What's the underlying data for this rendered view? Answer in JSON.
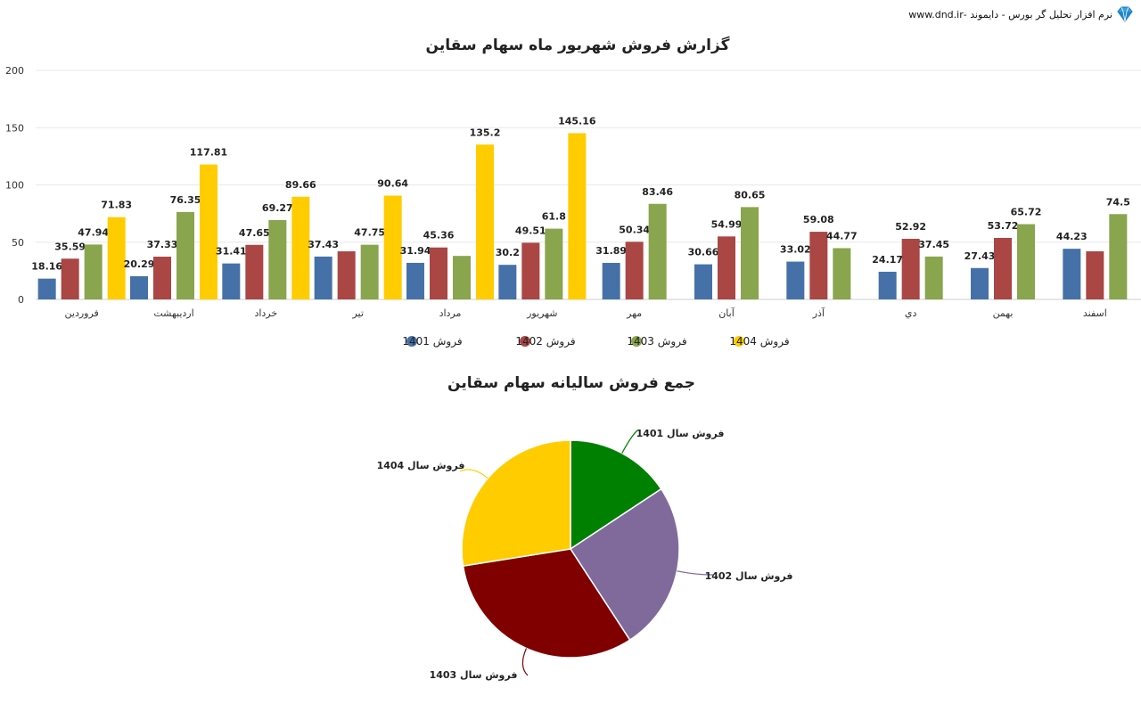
{
  "header": {
    "brand_text": "نرم افزار تحلیل گر بورس - دایموند -www.dnd.ir",
    "logo_icon": "diamond-icon"
  },
  "chart_data": [
    {
      "type": "bar",
      "title": "گزارش فروش شهریور ماه سهام سقاین",
      "categories": [
        "فروردین",
        "اردیبهشت",
        "خرداد",
        "تیر",
        "مرداد",
        "شهریور",
        "مهر",
        "آبان",
        "آذر",
        "دي",
        "بهمن",
        "اسفند"
      ],
      "series": [
        {
          "name": "فروش 1401",
          "color": "#4571a8",
          "values": [
            18.16,
            20.29,
            31.41,
            37.43,
            31.94,
            30.2,
            31.89,
            30.66,
            33.02,
            24.17,
            27.43,
            44.23
          ],
          "labels": [
            "18.16",
            "20.29",
            "31.41",
            "37.43",
            "31.94",
            "30.2",
            "31.89",
            "30.66",
            "33.02",
            "24.17",
            "27.43",
            "44.23"
          ]
        },
        {
          "name": "فروش 1402",
          "color": "#aa4643",
          "values": [
            35.59,
            37.33,
            47.65,
            42,
            45.36,
            49.51,
            50.34,
            54.99,
            59.08,
            52.92,
            53.72,
            42
          ],
          "labels": [
            "35.59",
            "37.33",
            "47.65",
            "",
            "45.36",
            "49.51",
            "50.34",
            "54.99",
            "59.08",
            "52.92",
            "53.72",
            ""
          ]
        },
        {
          "name": "فروش 1403",
          "color": "#89a54e",
          "values": [
            47.94,
            76.35,
            69.27,
            47.75,
            38,
            61.8,
            83.46,
            80.65,
            44.77,
            37.45,
            65.72,
            74.5
          ],
          "labels": [
            "47.94",
            "76.35",
            "69.27",
            "47.75",
            "",
            "61.8",
            "83.46",
            "80.65",
            "44.77",
            "37.45",
            "65.72",
            "74.5"
          ]
        },
        {
          "name": "فروش 1404",
          "color": "#ffcc00",
          "values": [
            71.83,
            117.81,
            89.66,
            90.64,
            135.2,
            145.16,
            null,
            null,
            null,
            null,
            null,
            null
          ],
          "labels": [
            "71.83",
            "117.81",
            "89.66",
            "90.64",
            "135.2",
            "145.16",
            "",
            "",
            "",
            "",
            "",
            ""
          ]
        }
      ],
      "ylim": [
        0,
        200
      ],
      "yticks": [
        "0",
        "50",
        "100",
        "150",
        "200"
      ],
      "grid": true,
      "legend": "bottom"
    },
    {
      "type": "pie",
      "title": "جمع فروش سالیانه سهام سقاین",
      "slices": [
        {
          "label": "فروش سال 1401",
          "value": 15.7,
          "color": "#008000"
        },
        {
          "label": "فروش سال 1402",
          "value": 25.1,
          "color": "#806a9c"
        },
        {
          "label": "فروش سال 1403",
          "value": 31.7,
          "color": "#800000"
        },
        {
          "label": "فروش سال 1404",
          "value": 27.5,
          "color": "#ffcc00"
        }
      ]
    }
  ]
}
